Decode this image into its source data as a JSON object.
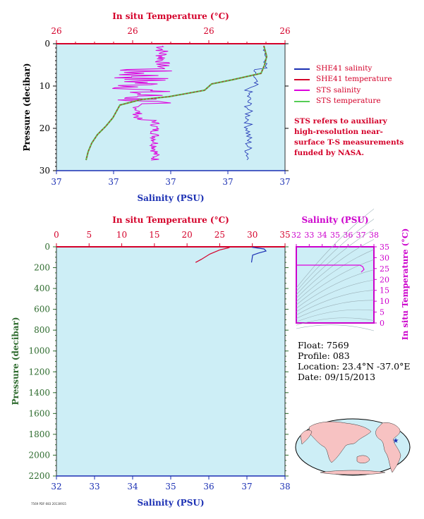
{
  "chart_data": [
    {
      "type": "line",
      "top_axis_label": "In situ Temperature (°C)",
      "top_ticks": [
        "26",
        "26",
        "26",
        "26"
      ],
      "ylabel": "Pressure (decibar)",
      "y_ticks": [
        "0",
        "10",
        "20",
        "30"
      ],
      "ylim": [
        0,
        30
      ],
      "xlabel": "Salinity (PSU)",
      "bottom_ticks": [
        "37",
        "37",
        "37",
        "37",
        "37"
      ],
      "series": [
        {
          "name": "SHE41 salinity",
          "color": "#1a2fb3"
        },
        {
          "name": "SHE41 temperature",
          "color": "#d4002a"
        },
        {
          "name": "STS salinity",
          "color": "#dd00dd"
        },
        {
          "name": "STS temperature",
          "color": "#55cc55"
        }
      ]
    },
    {
      "type": "line",
      "top_axis_label": "In situ Temperature (°C)",
      "top_ticks": [
        "0",
        "5",
        "10",
        "15",
        "20",
        "25",
        "30",
        "35"
      ],
      "ylabel": "Pressure (decibar)",
      "y_ticks": [
        "0",
        "200",
        "400",
        "600",
        "800",
        "1000",
        "1200",
        "1400",
        "1600",
        "1800",
        "2000",
        "2200"
      ],
      "ylim": [
        0,
        2200
      ],
      "xlabel": "Salinity (PSU)",
      "bottom_ticks": [
        "32",
        "33",
        "34",
        "35",
        "36",
        "37",
        "38"
      ],
      "xlim": [
        32,
        38
      ],
      "temp_xlim": [
        0,
        35
      ],
      "series": [
        {
          "name": "temperature",
          "color": "#d4002a",
          "temp": [
            26.5,
            26.5,
            26.3,
            25.0,
            23.5,
            22.2,
            21.3
          ],
          "pressure": [
            0,
            5,
            10,
            30,
            70,
            120,
            150
          ]
        },
        {
          "name": "salinity",
          "color": "#1a2fb3",
          "sal": [
            37.15,
            37.15,
            37.25,
            37.45,
            37.5,
            37.3,
            37.15,
            37.12
          ],
          "pressure": [
            0,
            5,
            10,
            20,
            40,
            60,
            80,
            150
          ]
        }
      ]
    },
    {
      "type": "scatter",
      "top_axis_label": "Salinity (PSU)",
      "top_ticks": [
        "32",
        "33",
        "34",
        "35",
        "36",
        "37",
        "38"
      ],
      "right_axis_label": "In situ Temperature (°C)",
      "right_ticks": [
        "0",
        "5",
        "10",
        "15",
        "20",
        "25",
        "30",
        "35"
      ],
      "xlim": [
        32,
        38
      ],
      "ylim": [
        0,
        35
      ]
    }
  ],
  "info": {
    "float": "Float:  7569",
    "profile": "Profile:  083",
    "location": "Location:  23.4°N  -37.0°E",
    "date": "Date:  09/15/2013"
  },
  "note": "STS refers to auxiliary high-resolution near-surface T-S measurements funded by NASA.",
  "footer_tiny": "7569 PDF-083 20130915"
}
